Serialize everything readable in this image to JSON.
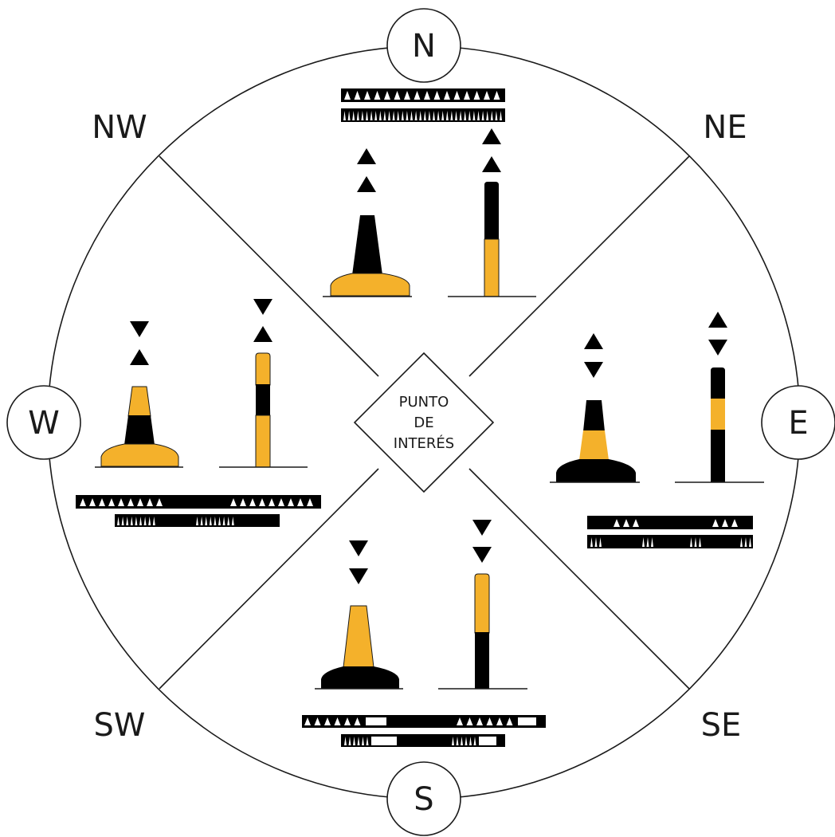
{
  "diagram": {
    "center_label": [
      "PUNTO",
      "DE",
      "INTERÉS"
    ],
    "directions": {
      "N": "N",
      "E": "E",
      "S": "S",
      "W": "W",
      "NE": "NE",
      "SE": "SE",
      "SW": "SW",
      "NW": "NW"
    },
    "colors": {
      "yellow": "#f4b12b",
      "black": "#000000",
      "line": "#1a1a1a",
      "background": "#ffffff"
    },
    "quadrants": [
      {
        "name": "north",
        "topmark": "both-cones-point-up",
        "bands_top_to_bottom": [
          "black",
          "yellow"
        ],
        "light": "continuous very quick / quick flashes"
      },
      {
        "name": "east",
        "topmark": "cones-base-to-base",
        "bands_top_to_bottom": [
          "black",
          "yellow",
          "black"
        ],
        "light": "3 flashes in group"
      },
      {
        "name": "south",
        "topmark": "both-cones-point-down",
        "bands_top_to_bottom": [
          "yellow",
          "black"
        ],
        "light": "6 flashes + long flash"
      },
      {
        "name": "west",
        "topmark": "cones-point-to-point",
        "bands_top_to_bottom": [
          "yellow",
          "black",
          "yellow"
        ],
        "light": "9 flashes in group"
      }
    ]
  }
}
